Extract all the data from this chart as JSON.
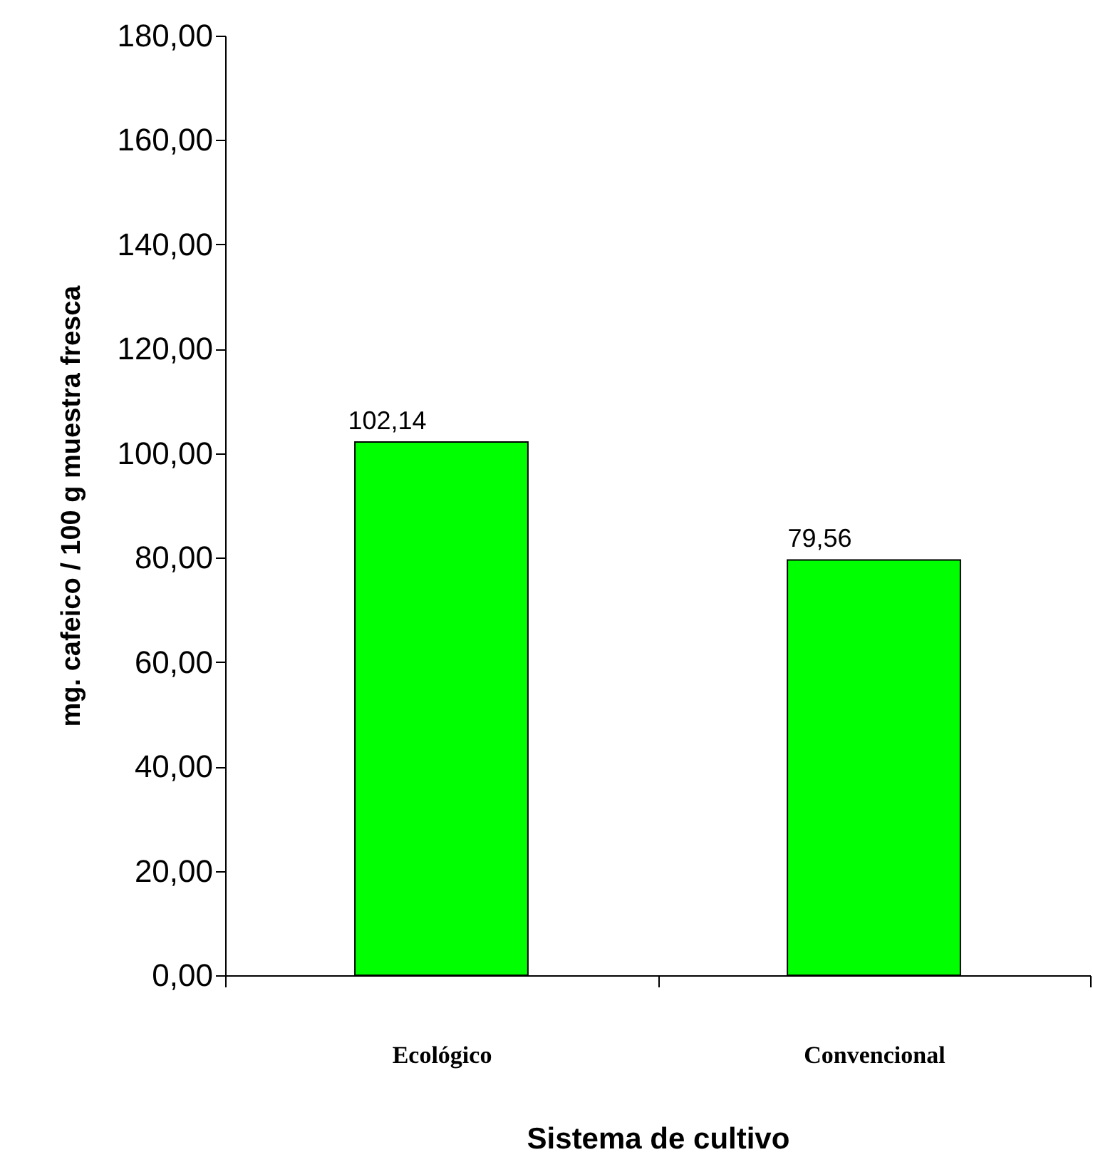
{
  "chart_data": {
    "type": "bar",
    "xlabel": "Sistema de cultivo",
    "ylabel": "mg. cafeico / 100 g muestra fresca",
    "categories": [
      "Ecológico",
      "Convencional"
    ],
    "values": [
      102.14,
      79.56
    ],
    "color": "#00ff00",
    "value_labels": [
      "102,14",
      "79,56"
    ],
    "ylim": [
      0,
      180
    ],
    "yticks": [
      {
        "value": 0,
        "label": "0,00"
      },
      {
        "value": 20,
        "label": "20,00"
      },
      {
        "value": 40,
        "label": "40,00"
      },
      {
        "value": 60,
        "label": "60,00"
      },
      {
        "value": 80,
        "label": "80,00"
      },
      {
        "value": 100,
        "label": "100,00"
      },
      {
        "value": 120,
        "label": "120,00"
      },
      {
        "value": 140,
        "label": "140,00"
      },
      {
        "value": 160,
        "label": "160,00"
      },
      {
        "value": 180,
        "label": "180,00"
      }
    ],
    "grid": false
  }
}
